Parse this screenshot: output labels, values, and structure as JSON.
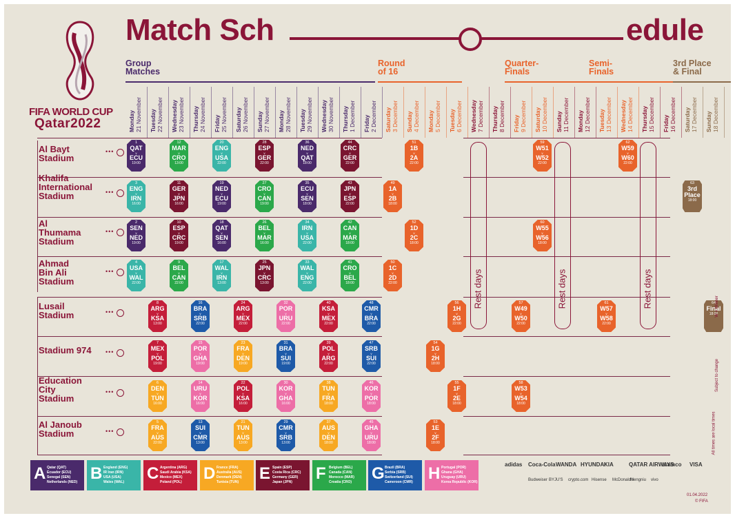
{
  "header": {
    "title_left": "Match Sch",
    "title_right": "edule",
    "brand_line1": "FIFA WORLD CUP",
    "brand_line2": "Qatar2022"
  },
  "phases": [
    {
      "label": "Group\nMatches",
      "color": "#4a2a6b"
    },
    {
      "label": "Round\nof 16",
      "color": "#e8632b"
    },
    {
      "label": "Quarter-\nFinals",
      "color": "#e8632b"
    },
    {
      "label": "Semi-\nFinals",
      "color": "#e8632b"
    },
    {
      "label": "3rd Place\n& Final",
      "color": "#8b6a4a"
    }
  ],
  "dates": [
    {
      "day": "Monday",
      "date": "21 November",
      "c": "#4a2a6b"
    },
    {
      "day": "Tuesday",
      "date": "22 November",
      "c": "#4a2a6b"
    },
    {
      "day": "Wednesday",
      "date": "23 November",
      "c": "#4a2a6b"
    },
    {
      "day": "Thursday",
      "date": "24 November",
      "c": "#4a2a6b"
    },
    {
      "day": "Friday",
      "date": "25 November",
      "c": "#4a2a6b"
    },
    {
      "day": "Saturday",
      "date": "26 November",
      "c": "#4a2a6b"
    },
    {
      "day": "Sunday",
      "date": "27 November",
      "c": "#4a2a6b"
    },
    {
      "day": "Monday",
      "date": "28 November",
      "c": "#4a2a6b"
    },
    {
      "day": "Tuesday",
      "date": "29 November",
      "c": "#4a2a6b"
    },
    {
      "day": "Wednesday",
      "date": "30 November",
      "c": "#4a2a6b"
    },
    {
      "day": "Thursday",
      "date": "1 December",
      "c": "#4a2a6b"
    },
    {
      "day": "Friday",
      "date": "2 December",
      "c": "#4a2a6b"
    },
    {
      "day": "Saturday",
      "date": "3 December",
      "c": "#e8632b"
    },
    {
      "day": "Sunday",
      "date": "4 December",
      "c": "#e8632b"
    },
    {
      "day": "Monday",
      "date": "5 December",
      "c": "#e8632b"
    },
    {
      "day": "Tuesday",
      "date": "6 December",
      "c": "#e8632b"
    },
    {
      "day": "Wednesday",
      "date": "7 December",
      "c": "#8a1538"
    },
    {
      "day": "Thursday",
      "date": "8 December",
      "c": "#8a1538"
    },
    {
      "day": "Friday",
      "date": "9 December",
      "c": "#e8632b"
    },
    {
      "day": "Saturday",
      "date": "10 December",
      "c": "#e8632b"
    },
    {
      "day": "Sunday",
      "date": "11 December",
      "c": "#8a1538"
    },
    {
      "day": "Monday",
      "date": "12 December",
      "c": "#8a1538"
    },
    {
      "day": "Tuesday",
      "date": "13 December",
      "c": "#e8632b"
    },
    {
      "day": "Wednesday",
      "date": "14 December",
      "c": "#e8632b"
    },
    {
      "day": "Thursday",
      "date": "15 December",
      "c": "#8a1538"
    },
    {
      "day": "Friday",
      "date": "16 December",
      "c": "#8a1538"
    },
    {
      "day": "Saturday",
      "date": "17 December",
      "c": "#8b6a4a"
    },
    {
      "day": "Sunday",
      "date": "18 December",
      "c": "#8b6a4a"
    }
  ],
  "stadiums": [
    "Al Bayt\nStadium",
    "Khalifa\nInternational\nStadium",
    "Al\nThumama\nStadium",
    "Ahmad\nBin Ali\nStadium",
    "Lusail\nStadium",
    "Stadium 974",
    "Education\nCity\nStadium",
    "Al Janoub\nStadium"
  ],
  "group_colors": {
    "A": "#4a2a6b",
    "B": "#3ab5a8",
    "C": "#c41e3a",
    "D": "#f7a823",
    "E": "#7a1530",
    "F": "#2ba84a",
    "G": "#1e5aa8",
    "H": "#ed6ea7",
    "K": "#e8632b",
    "FN": "#8b6a4a"
  },
  "matches": [
    {
      "no": "1",
      "t1": "QAT",
      "t2": "ECU",
      "time": "19:00",
      "g": "A",
      "d": 0,
      "s": 0
    },
    {
      "no": "12",
      "t1": "MAR",
      "t2": "CRO",
      "time": "13:00",
      "g": "F",
      "d": 2,
      "s": 0
    },
    {
      "no": "20",
      "t1": "ENG",
      "t2": "USA",
      "time": "22:00",
      "g": "B",
      "d": 4,
      "s": 0
    },
    {
      "no": "28",
      "t1": "ESP",
      "t2": "GER",
      "time": "22:00",
      "g": "E",
      "d": 6,
      "s": 0
    },
    {
      "no": "36",
      "t1": "NED",
      "t2": "QAT",
      "time": "18:00",
      "g": "A",
      "d": 8,
      "s": 0
    },
    {
      "no": "44",
      "t1": "CRC",
      "t2": "GER",
      "time": "22:00",
      "g": "E",
      "d": 10,
      "s": 0
    },
    {
      "no": "51",
      "t1": "1B",
      "t2": "2A",
      "time": "22:00",
      "g": "K",
      "d": 13,
      "s": 0
    },
    {
      "no": "59",
      "t1": "W51",
      "t2": "W52",
      "time": "22:00",
      "g": "K",
      "d": 19,
      "s": 0
    },
    {
      "no": "62",
      "t1": "W59",
      "t2": "W60",
      "time": "22:00",
      "g": "K",
      "d": 23,
      "s": 0
    },
    {
      "no": "3",
      "t1": "ENG",
      "t2": "IRN",
      "time": "16:00",
      "g": "B",
      "d": 0,
      "s": 1
    },
    {
      "no": "11",
      "t1": "GER",
      "t2": "JPN",
      "time": "16:00",
      "g": "E",
      "d": 2,
      "s": 1
    },
    {
      "no": "19",
      "t1": "NED",
      "t2": "ECU",
      "time": "19:00",
      "g": "A",
      "d": 4,
      "s": 1
    },
    {
      "no": "27",
      "t1": "CRO",
      "t2": "CAN",
      "time": "19:00",
      "g": "F",
      "d": 6,
      "s": 1
    },
    {
      "no": "35",
      "t1": "ECU",
      "t2": "SEN",
      "time": "18:00",
      "g": "A",
      "d": 8,
      "s": 1
    },
    {
      "no": "43",
      "t1": "JPN",
      "t2": "ESP",
      "time": "22:00",
      "g": "E",
      "d": 10,
      "s": 1
    },
    {
      "no": "49",
      "t1": "1A",
      "t2": "2B",
      "time": "18:00",
      "g": "K",
      "d": 12,
      "s": 1
    },
    {
      "no": "63",
      "t1": "3rd",
      "t2": "Place",
      "time": "18:00",
      "g": "FN",
      "d": 26,
      "s": 1,
      "sq": true
    },
    {
      "no": "2",
      "t1": "SEN",
      "t2": "NED",
      "time": "19:00",
      "g": "A",
      "d": 0,
      "s": 2
    },
    {
      "no": "10",
      "t1": "ESP",
      "t2": "CRC",
      "time": "19:00",
      "g": "E",
      "d": 2,
      "s": 2
    },
    {
      "no": "18",
      "t1": "QAT",
      "t2": "SEN",
      "time": "16:00",
      "g": "A",
      "d": 4,
      "s": 2
    },
    {
      "no": "26",
      "t1": "BEL",
      "t2": "MAR",
      "time": "16:00",
      "g": "F",
      "d": 6,
      "s": 2
    },
    {
      "no": "34",
      "t1": "IRN",
      "t2": "USA",
      "time": "22:00",
      "g": "B",
      "d": 8,
      "s": 2
    },
    {
      "no": "42",
      "t1": "CAN",
      "t2": "MAR",
      "time": "18:00",
      "g": "F",
      "d": 10,
      "s": 2
    },
    {
      "no": "52",
      "t1": "1D",
      "t2": "2C",
      "time": "18:00",
      "g": "K",
      "d": 13,
      "s": 2
    },
    {
      "no": "60",
      "t1": "W55",
      "t2": "W56",
      "time": "18:00",
      "g": "K",
      "d": 19,
      "s": 2
    },
    {
      "no": "4",
      "t1": "USA",
      "t2": "WAL",
      "time": "22:00",
      "g": "B",
      "d": 0,
      "s": 3
    },
    {
      "no": "9",
      "t1": "BEL",
      "t2": "CAN",
      "time": "22:00",
      "g": "F",
      "d": 2,
      "s": 3
    },
    {
      "no": "17",
      "t1": "WAL",
      "t2": "IRN",
      "time": "13:00",
      "g": "B",
      "d": 4,
      "s": 3
    },
    {
      "no": "25",
      "t1": "JPN",
      "t2": "CRC",
      "time": "13:00",
      "g": "E",
      "d": 6,
      "s": 3
    },
    {
      "no": "33",
      "t1": "WAL",
      "t2": "ENG",
      "time": "22:00",
      "g": "B",
      "d": 8,
      "s": 3
    },
    {
      "no": "41",
      "t1": "CRO",
      "t2": "BEL",
      "time": "18:00",
      "g": "F",
      "d": 10,
      "s": 3
    },
    {
      "no": "50",
      "t1": "1C",
      "t2": "2D",
      "time": "22:00",
      "g": "K",
      "d": 12,
      "s": 3
    },
    {
      "no": "8",
      "t1": "ARG",
      "t2": "KSA",
      "time": "13:00",
      "g": "C",
      "d": 1,
      "s": 4
    },
    {
      "no": "16",
      "t1": "BRA",
      "t2": "SRB",
      "time": "22:00",
      "g": "G",
      "d": 3,
      "s": 4
    },
    {
      "no": "24",
      "t1": "ARG",
      "t2": "MEX",
      "time": "22:00",
      "g": "C",
      "d": 5,
      "s": 4
    },
    {
      "no": "32",
      "t1": "POR",
      "t2": "URU",
      "time": "22:00",
      "g": "H",
      "d": 7,
      "s": 4
    },
    {
      "no": "40",
      "t1": "KSA",
      "t2": "MEX",
      "time": "22:00",
      "g": "C",
      "d": 9,
      "s": 4
    },
    {
      "no": "48",
      "t1": "CMR",
      "t2": "BRA",
      "time": "22:00",
      "g": "G",
      "d": 11,
      "s": 4
    },
    {
      "no": "56",
      "t1": "1H",
      "t2": "2G",
      "time": "22:00",
      "g": "K",
      "d": 15,
      "s": 4
    },
    {
      "no": "57",
      "t1": "W49",
      "t2": "W50",
      "time": "22:00",
      "g": "K",
      "d": 18,
      "s": 4
    },
    {
      "no": "61",
      "t1": "W57",
      "t2": "W58",
      "time": "22:00",
      "g": "K",
      "d": 22,
      "s": 4
    },
    {
      "no": "64",
      "t1": "Final",
      "t2": "",
      "time": "18:00",
      "g": "FN",
      "d": 27,
      "s": 4,
      "sq": true
    },
    {
      "no": "7",
      "t1": "MEX",
      "t2": "POL",
      "time": "19:00",
      "g": "C",
      "d": 1,
      "s": 5
    },
    {
      "no": "15",
      "t1": "POR",
      "t2": "GHA",
      "time": "19:00",
      "g": "H",
      "d": 3,
      "s": 5
    },
    {
      "no": "23",
      "t1": "FRA",
      "t2": "DEN",
      "time": "19:00",
      "g": "D",
      "d": 5,
      "s": 5
    },
    {
      "no": "31",
      "t1": "BRA",
      "t2": "SUI",
      "time": "19:00",
      "g": "G",
      "d": 7,
      "s": 5
    },
    {
      "no": "39",
      "t1": "POL",
      "t2": "ARG",
      "time": "22:00",
      "g": "C",
      "d": 9,
      "s": 5
    },
    {
      "no": "47",
      "t1": "SRB",
      "t2": "SUI",
      "time": "22:00",
      "g": "G",
      "d": 11,
      "s": 5
    },
    {
      "no": "54",
      "t1": "1G",
      "t2": "2H",
      "time": "18:00",
      "g": "K",
      "d": 14,
      "s": 5
    },
    {
      "no": "6",
      "t1": "DEN",
      "t2": "TUN",
      "time": "16:00",
      "g": "D",
      "d": 1,
      "s": 6
    },
    {
      "no": "14",
      "t1": "URU",
      "t2": "KOR",
      "time": "16:00",
      "g": "H",
      "d": 3,
      "s": 6
    },
    {
      "no": "22",
      "t1": "POL",
      "t2": "KSA",
      "time": "16:00",
      "g": "C",
      "d": 5,
      "s": 6
    },
    {
      "no": "30",
      "t1": "KOR",
      "t2": "GHA",
      "time": "16:00",
      "g": "H",
      "d": 7,
      "s": 6
    },
    {
      "no": "38",
      "t1": "TUN",
      "t2": "FRA",
      "time": "18:00",
      "g": "D",
      "d": 9,
      "s": 6
    },
    {
      "no": "46",
      "t1": "KOR",
      "t2": "POR",
      "time": "18:00",
      "g": "H",
      "d": 11,
      "s": 6
    },
    {
      "no": "55",
      "t1": "1F",
      "t2": "2E",
      "time": "18:00",
      "g": "K",
      "d": 15,
      "s": 6
    },
    {
      "no": "58",
      "t1": "W53",
      "t2": "W54",
      "time": "18:00",
      "g": "K",
      "d": 18,
      "s": 6
    },
    {
      "no": "5",
      "t1": "FRA",
      "t2": "AUS",
      "time": "22:00",
      "g": "D",
      "d": 1,
      "s": 7
    },
    {
      "no": "13",
      "t1": "SUI",
      "t2": "CMR",
      "time": "13:00",
      "g": "G",
      "d": 3,
      "s": 7
    },
    {
      "no": "21",
      "t1": "TUN",
      "t2": "AUS",
      "time": "13:00",
      "g": "D",
      "d": 5,
      "s": 7
    },
    {
      "no": "29",
      "t1": "CMR",
      "t2": "SRB",
      "time": "13:00",
      "g": "G",
      "d": 7,
      "s": 7
    },
    {
      "no": "37",
      "t1": "AUS",
      "t2": "DEN",
      "time": "18:00",
      "g": "D",
      "d": 9,
      "s": 7
    },
    {
      "no": "45",
      "t1": "GHA",
      "t2": "URU",
      "time": "18:00",
      "g": "H",
      "d": 11,
      "s": 7
    },
    {
      "no": "53",
      "t1": "1E",
      "t2": "2F",
      "time": "18:00",
      "g": "K",
      "d": 14,
      "s": 7
    }
  ],
  "rest_label": "Rest days",
  "groups": [
    {
      "letter": "A",
      "teams": "Qatar (QAT)\nEcuador (ECU)\nSenegal (SEN)\nNetherlands (NED)"
    },
    {
      "letter": "B",
      "teams": "England (ENG)\nIR Iran (IRN)\nUSA (USA)\nWales (WAL)"
    },
    {
      "letter": "C",
      "teams": "Argentina (ARG)\nSaudi Arabia (KSA)\nMexico (MEX)\nPoland (POL)"
    },
    {
      "letter": "D",
      "teams": "France (FRA)\nAustralia (AUS)\nDenmark (DEN)\nTunisia (TUN)"
    },
    {
      "letter": "E",
      "teams": "Spain (ESP)\nCosta Rica (CRC)\nGermany (GER)\nJapan (JPN)"
    },
    {
      "letter": "F",
      "teams": "Belgium (BEL)\nCanada (CAN)\nMorocco (MAR)\nCroatia (CRO)"
    },
    {
      "letter": "G",
      "teams": "Brazil (BRA)\nSerbia (SRB)\nSwitzerland (SUI)\nCameroon (CMR)"
    },
    {
      "letter": "H",
      "teams": "Portugal (POR)\nGhana (GHA)\nUruguay (URU)\nKorea Republic (KOR)"
    }
  ],
  "side_notes": [
    "W = Winner",
    "Subject to change",
    "All times are local times"
  ],
  "sponsors": {
    "row1": [
      "adidas",
      "Coca-Cola",
      "WANDA",
      "HYUNDAI",
      "KIA",
      "QATAR AIRWAYS",
      "aramco",
      "VISA"
    ],
    "row2": [
      "Budweiser",
      "BYJU'S",
      "crypto.com",
      "Hisense",
      "McDonald's",
      "Mengniu",
      "vivo"
    ]
  },
  "footer": {
    "date": "01.04.2022",
    "copyright": "© FIFA"
  }
}
